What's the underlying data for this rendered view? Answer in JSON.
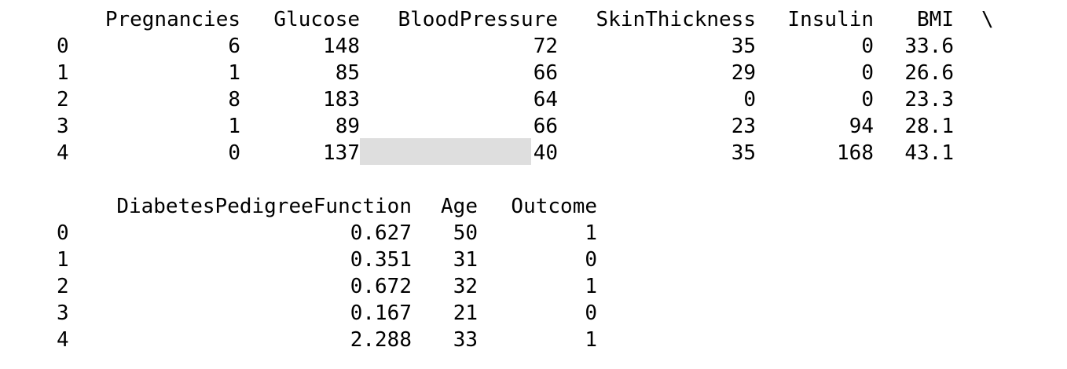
{
  "table1": {
    "headers": [
      "Pregnancies",
      "Glucose",
      "BloodPressure",
      "SkinThickness",
      "Insulin",
      "BMI"
    ],
    "continuation": "\\",
    "index": [
      "0",
      "1",
      "2",
      "3",
      "4"
    ],
    "rows": [
      [
        "6",
        "148",
        "72",
        "35",
        "0",
        "33.6"
      ],
      [
        "1",
        "85",
        "66",
        "29",
        "0",
        "26.6"
      ],
      [
        "8",
        "183",
        "64",
        "0",
        "0",
        "23.3"
      ],
      [
        "1",
        "89",
        "66",
        "23",
        "94",
        "28.1"
      ],
      [
        "0",
        "137",
        "40",
        "35",
        "168",
        "43.1"
      ]
    ]
  },
  "table2": {
    "headers": [
      "DiabetesPedigreeFunction",
      "Age",
      "Outcome"
    ],
    "index": [
      "0",
      "1",
      "2",
      "3",
      "4"
    ],
    "rows": [
      [
        "0.627",
        "50",
        "1"
      ],
      [
        "0.351",
        "31",
        "0"
      ],
      [
        "0.672",
        "32",
        "1"
      ],
      [
        "0.167",
        "21",
        "0"
      ],
      [
        "2.288",
        "33",
        "1"
      ]
    ]
  },
  "highlight_color": "#dedede"
}
